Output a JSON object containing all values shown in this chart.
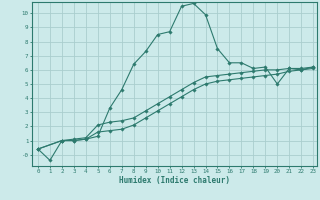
{
  "xlabel": "Humidex (Indice chaleur)",
  "bg_color": "#cceaea",
  "grid_color": "#aacece",
  "line_color": "#2d7a6e",
  "xlim": [
    -0.5,
    23.3
  ],
  "ylim": [
    -0.8,
    10.8
  ],
  "xticks": [
    0,
    1,
    2,
    3,
    4,
    5,
    6,
    7,
    8,
    9,
    10,
    11,
    12,
    13,
    14,
    15,
    16,
    17,
    18,
    19,
    20,
    21,
    22,
    23
  ],
  "yticks": [
    0,
    1,
    2,
    3,
    4,
    5,
    6,
    7,
    8,
    9,
    10
  ],
  "ytick_labels": [
    "-0",
    "1",
    "2",
    "3",
    "4",
    "5",
    "6",
    "7",
    "8",
    "9",
    "10"
  ],
  "line1_x": [
    0,
    1,
    2,
    3,
    4,
    5,
    6,
    7,
    8,
    9,
    10,
    11,
    12,
    13,
    14,
    15,
    16,
    17,
    18,
    19,
    20,
    21,
    22,
    23
  ],
  "line1_y": [
    0.4,
    -0.4,
    1.0,
    1.0,
    1.1,
    1.3,
    3.3,
    4.6,
    6.4,
    7.3,
    8.5,
    8.7,
    10.5,
    10.7,
    9.9,
    7.5,
    6.5,
    6.5,
    6.1,
    6.2,
    5.0,
    6.1,
    6.0,
    6.1
  ],
  "line2_x": [
    0,
    2,
    3,
    4,
    5,
    6,
    7,
    8,
    9,
    10,
    11,
    12,
    13,
    14,
    15,
    16,
    17,
    18,
    19,
    20,
    21,
    22,
    23
  ],
  "line2_y": [
    0.4,
    1.0,
    1.1,
    1.2,
    2.1,
    2.3,
    2.4,
    2.6,
    3.1,
    3.6,
    4.1,
    4.6,
    5.1,
    5.5,
    5.6,
    5.7,
    5.8,
    5.9,
    6.0,
    6.0,
    6.1,
    6.1,
    6.2
  ],
  "line3_x": [
    0,
    2,
    3,
    4,
    5,
    6,
    7,
    8,
    9,
    10,
    11,
    12,
    13,
    14,
    15,
    16,
    17,
    18,
    19,
    20,
    21,
    22,
    23
  ],
  "line3_y": [
    0.4,
    1.0,
    1.0,
    1.1,
    1.6,
    1.7,
    1.8,
    2.1,
    2.6,
    3.1,
    3.6,
    4.1,
    4.6,
    5.0,
    5.2,
    5.3,
    5.4,
    5.5,
    5.6,
    5.7,
    5.9,
    6.0,
    6.2
  ]
}
